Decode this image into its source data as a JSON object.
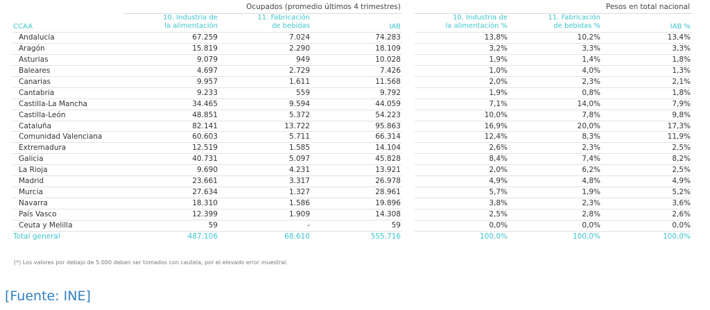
{
  "left_table": {
    "group_title": "Ocupados (promedio últimos 4 trimestres)",
    "headers": {
      "ccaa": "CCAA",
      "col1_line1": "10. Industria de",
      "col1_line2": "la alimentación",
      "col2_line1": "11. Fabricación",
      "col2_line2": "de bebidas",
      "col3": "IAB"
    }
  },
  "right_table": {
    "group_title": "Pesos en total nacional",
    "headers": {
      "col1_line1": "10. Industria de",
      "col1_line2": "la alimentación %",
      "col2_line1": "11. Fabricación",
      "col2_line2": "de bebidas %",
      "col3": "IAB %"
    }
  },
  "rows": [
    {
      "ccaa": "Andalucía",
      "alim": "67.259",
      "beb": "7.024",
      "iab": "74.283",
      "alim_pct": "13,8%",
      "beb_pct": "10,2%",
      "iab_pct": "13,4%"
    },
    {
      "ccaa": "Aragón",
      "alim": "15.819",
      "beb": "2.290",
      "iab": "18.109",
      "alim_pct": "3,2%",
      "beb_pct": "3,3%",
      "iab_pct": "3,3%"
    },
    {
      "ccaa": "Asturias",
      "alim": "9.079",
      "beb": "949",
      "iab": "10.028",
      "alim_pct": "1,9%",
      "beb_pct": "1,4%",
      "iab_pct": "1,8%"
    },
    {
      "ccaa": "Baleares",
      "alim": "4.697",
      "beb": "2.729",
      "iab": "7.426",
      "alim_pct": "1,0%",
      "beb_pct": "4,0%",
      "iab_pct": "1,3%"
    },
    {
      "ccaa": "Canarias",
      "alim": "9.957",
      "beb": "1.611",
      "iab": "11.568",
      "alim_pct": "2,0%",
      "beb_pct": "2,3%",
      "iab_pct": "2,1%"
    },
    {
      "ccaa": "Cantabria",
      "alim": "9.233",
      "beb": "559",
      "iab": "9.792",
      "alim_pct": "1,9%",
      "beb_pct": "0,8%",
      "iab_pct": "1,8%"
    },
    {
      "ccaa": "Castilla-La Mancha",
      "alim": "34.465",
      "beb": "9.594",
      "iab": "44.059",
      "alim_pct": "7,1%",
      "beb_pct": "14,0%",
      "iab_pct": "7,9%"
    },
    {
      "ccaa": "Castilla-León",
      "alim": "48.851",
      "beb": "5.372",
      "iab": "54.223",
      "alim_pct": "10,0%",
      "beb_pct": "7,8%",
      "iab_pct": "9,8%"
    },
    {
      "ccaa": "Cataluña",
      "alim": "82.141",
      "beb": "13.722",
      "iab": "95.863",
      "alim_pct": "16,9%",
      "beb_pct": "20,0%",
      "iab_pct": "17,3%"
    },
    {
      "ccaa": "Comunidad Valenciana",
      "alim": "60.603",
      "beb": "5.711",
      "iab": "66.314",
      "alim_pct": "12,4%",
      "beb_pct": "8,3%",
      "iab_pct": "11,9%"
    },
    {
      "ccaa": "Extremadura",
      "alim": "12.519",
      "beb": "1.585",
      "iab": "14.104",
      "alim_pct": "2,6%",
      "beb_pct": "2,3%",
      "iab_pct": "2,5%"
    },
    {
      "ccaa": "Galicia",
      "alim": "40.731",
      "beb": "5.097",
      "iab": "45.828",
      "alim_pct": "8,4%",
      "beb_pct": "7,4%",
      "iab_pct": "8,2%"
    },
    {
      "ccaa": "La Rioja",
      "alim": "9.690",
      "beb": "4.231",
      "iab": "13.921",
      "alim_pct": "2,0%",
      "beb_pct": "6,2%",
      "iab_pct": "2,5%"
    },
    {
      "ccaa": "Madrid",
      "alim": "23.661",
      "beb": "3.317",
      "iab": "26.978",
      "alim_pct": "4,9%",
      "beb_pct": "4,8%",
      "iab_pct": "4,9%"
    },
    {
      "ccaa": "Murcia",
      "alim": "27.634",
      "beb": "1.327",
      "iab": "28.961",
      "alim_pct": "5,7%",
      "beb_pct": "1,9%",
      "iab_pct": "5,2%"
    },
    {
      "ccaa": "Navarra",
      "alim": "18.310",
      "beb": "1.586",
      "iab": "19.896",
      "alim_pct": "3,8%",
      "beb_pct": "2,3%",
      "iab_pct": "3,6%"
    },
    {
      "ccaa": "País Vasco",
      "alim": "12.399",
      "beb": "1.909",
      "iab": "14.308",
      "alim_pct": "2,5%",
      "beb_pct": "2,8%",
      "iab_pct": "2,6%"
    },
    {
      "ccaa": "Ceuta y Melilla",
      "alim": "59",
      "beb": "-",
      "iab": "59",
      "alim_pct": "0,0%",
      "beb_pct": "0,0%",
      "iab_pct": "0,0%"
    }
  ],
  "total": {
    "ccaa": "Total general",
    "alim": "487.106",
    "beb": "68.610",
    "iab": "555.716",
    "alim_pct": "100,0%",
    "beb_pct": "100,0%",
    "iab_pct": "100,0%"
  },
  "footnote": "(*) Los valores por debajo de 5.000 deben ser tomados con cautela, por el elevado error muestral.",
  "source": "[Fuente: INE]",
  "colors": {
    "accent": "#3fc5cc",
    "source_link": "#2f7fc0",
    "text": "#333333"
  }
}
